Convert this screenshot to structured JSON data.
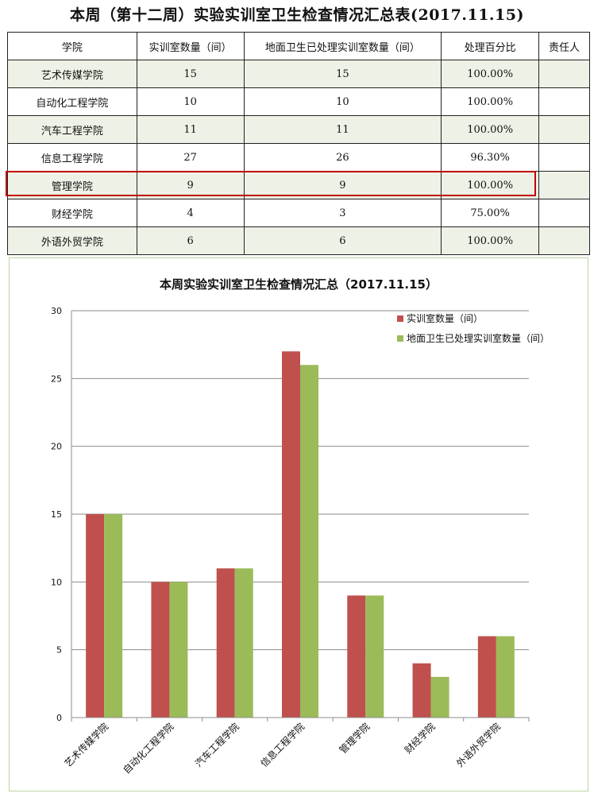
{
  "header": {
    "title": "本周（第十二周）实验实训室卫生检查情况汇总表(2017.11.15)"
  },
  "table": {
    "columns": [
      "学院",
      "实训室数量（间）",
      "地面卫生已处理实训室数量（间）",
      "处理百分比",
      "责任人"
    ],
    "rows": [
      {
        "college": "艺术传媒学院",
        "rooms": "15",
        "cleaned": "15",
        "percent": "100.00%",
        "owner": ""
      },
      {
        "college": "自动化工程学院",
        "rooms": "10",
        "cleaned": "10",
        "percent": "100.00%",
        "owner": ""
      },
      {
        "college": "汽车工程学院",
        "rooms": "11",
        "cleaned": "11",
        "percent": "100.00%",
        "owner": ""
      },
      {
        "college": "信息工程学院",
        "rooms": "27",
        "cleaned": "26",
        "percent": "96.30%",
        "owner": ""
      },
      {
        "college": "管理学院",
        "rooms": "9",
        "cleaned": "9",
        "percent": "100.00%",
        "owner": ""
      },
      {
        "college": "财经学院",
        "rooms": "4",
        "cleaned": "3",
        "percent": "75.00%",
        "owner": ""
      },
      {
        "college": "外语外贸学院",
        "rooms": "6",
        "cleaned": "6",
        "percent": "100.00%",
        "owner": ""
      }
    ],
    "highlighted_row": "管理学院",
    "highlight_color": "#c00000"
  },
  "chart_data": {
    "type": "bar",
    "title": "本周实验实训室卫生检查情况汇总（2017.11.15）",
    "categories": [
      "艺术传媒学院",
      "自动化工程学院",
      "汽车工程学院",
      "信息工程学院",
      "管理学院",
      "财经学院",
      "外语外贸学院"
    ],
    "series": [
      {
        "name": "实训室数量（间）",
        "values": [
          15,
          10,
          11,
          27,
          9,
          4,
          6
        ],
        "color": "#c0504d"
      },
      {
        "name": "地面卫生已处理实训室数量（间）",
        "values": [
          15,
          10,
          11,
          26,
          9,
          3,
          6
        ],
        "color": "#9bbb59"
      }
    ],
    "ylim": [
      0,
      30
    ],
    "yticks": [
      0,
      5,
      10,
      15,
      20,
      25,
      30
    ],
    "grid": true,
    "legend": "top-right",
    "xlabel": "",
    "ylabel": ""
  }
}
